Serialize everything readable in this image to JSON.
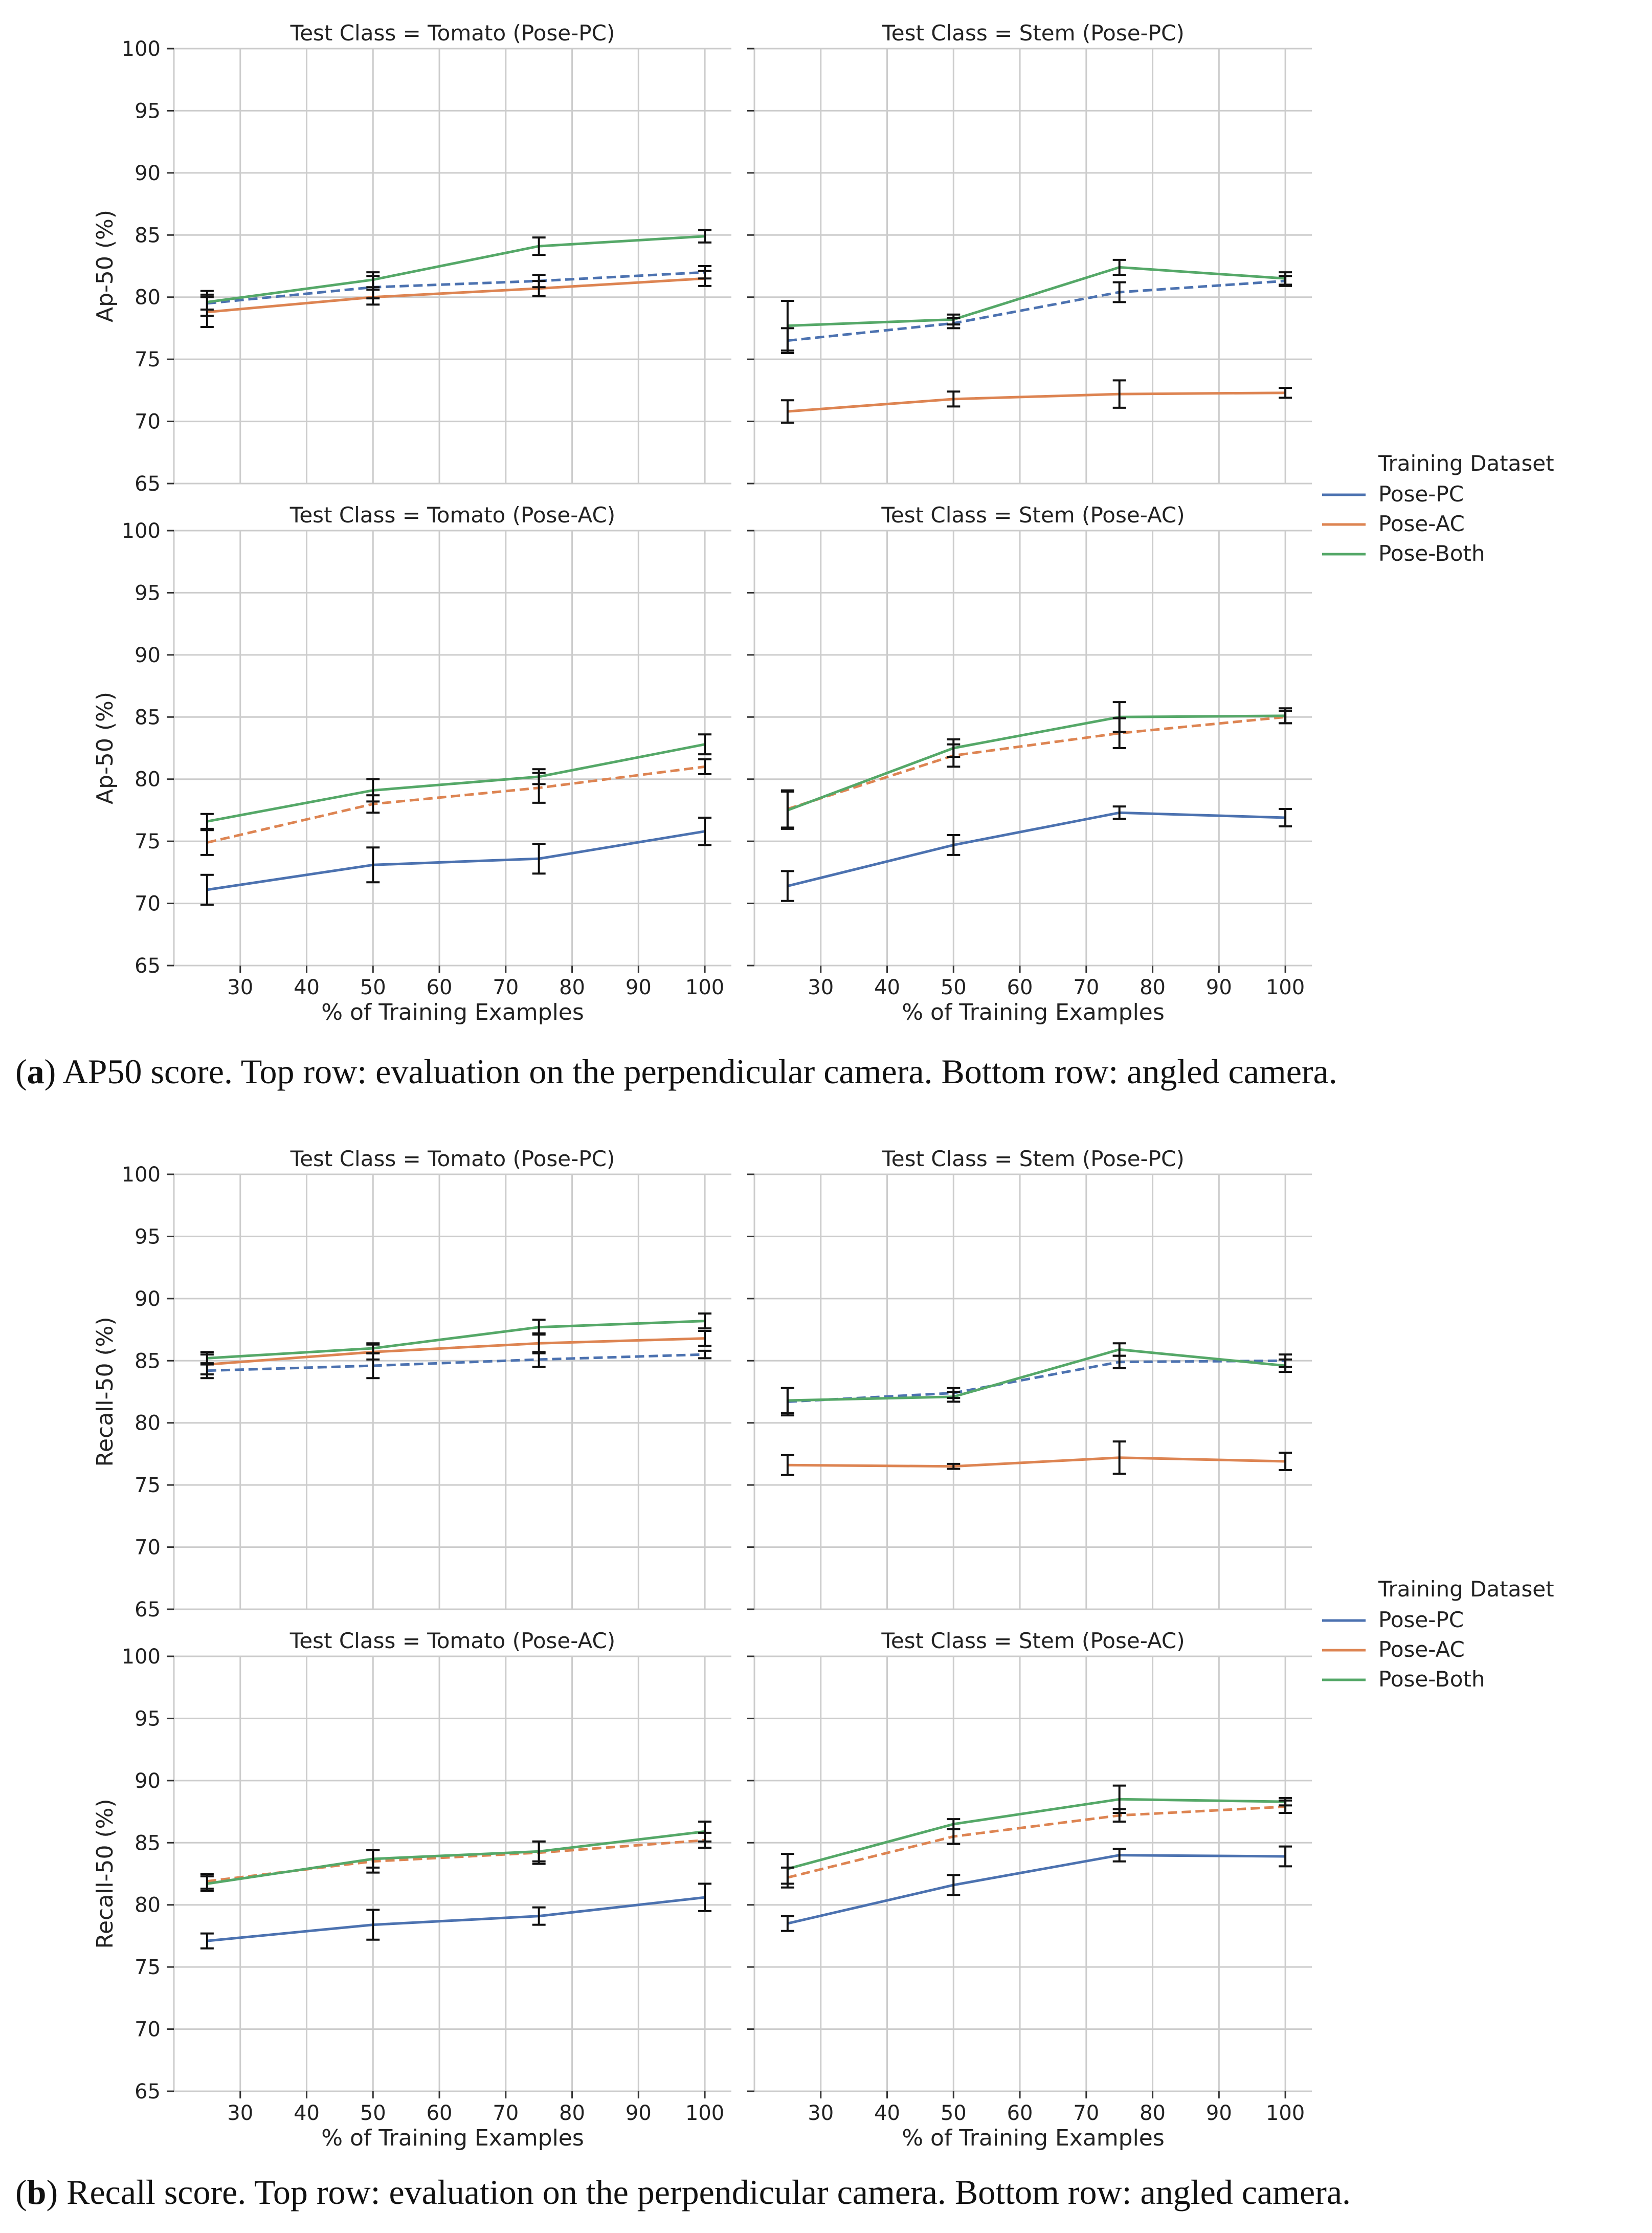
{
  "figure": {
    "xlabel": "% of Training Examples",
    "legend": {
      "title": "Training Dataset",
      "entries": [
        {
          "label": "Pose-PC",
          "color": "#4c72b0"
        },
        {
          "label": "Pose-AC",
          "color": "#dd8452"
        },
        {
          "label": "Pose-Both",
          "color": "#55a868"
        }
      ]
    },
    "captions": [
      {
        "letter": "a",
        "text": ") AP50 score. Top row: evaluation on the perpendicular camera. Bottom row: angled camera."
      },
      {
        "letter": "b",
        "text": ") Recall score. Top row: evaluation on the perpendicular camera. Bottom row: angled camera."
      }
    ]
  },
  "chart_data": [
    {
      "type": "line",
      "group": "a",
      "row": 0,
      "col": 0,
      "title": "Test Class = Tomato (Pose-PC)",
      "xlabel": "",
      "ylabel": "Ap-50 (%)",
      "xlim": [
        20,
        104
      ],
      "ylim": [
        65,
        100
      ],
      "xticks": [
        30,
        40,
        50,
        60,
        70,
        80,
        90,
        100
      ],
      "yticks": [
        65,
        70,
        75,
        80,
        85,
        90,
        95,
        100
      ],
      "grid": true,
      "x": [
        25,
        50,
        75,
        100
      ],
      "series": [
        {
          "name": "Pose-PC",
          "values": [
            79.5,
            80.8,
            81.3,
            82.0
          ],
          "err": [
            1.0,
            0.9,
            0.5,
            0.5
          ],
          "dashed": true
        },
        {
          "name": "Pose-AC",
          "values": [
            78.8,
            80.0,
            80.7,
            81.5
          ],
          "err": [
            1.2,
            0.6,
            0.6,
            0.6
          ],
          "dashed": false
        },
        {
          "name": "Pose-Both",
          "values": [
            79.6,
            81.4,
            84.1,
            84.9
          ],
          "err": [
            0.6,
            0.6,
            0.7,
            0.5
          ],
          "dashed": false
        }
      ]
    },
    {
      "type": "line",
      "group": "a",
      "row": 0,
      "col": 1,
      "title": "Test Class = Stem (Pose-PC)",
      "xlabel": "",
      "ylabel": "",
      "xlim": [
        20,
        104
      ],
      "ylim": [
        65,
        100
      ],
      "xticks": [
        30,
        40,
        50,
        60,
        70,
        80,
        90,
        100
      ],
      "yticks": [
        65,
        70,
        75,
        80,
        85,
        90,
        95,
        100
      ],
      "grid": true,
      "x": [
        25,
        50,
        75,
        100
      ],
      "series": [
        {
          "name": "Pose-PC",
          "values": [
            76.5,
            77.9,
            80.4,
            81.3
          ],
          "err": [
            1.0,
            0.4,
            0.8,
            0.4
          ],
          "dashed": true
        },
        {
          "name": "Pose-AC",
          "values": [
            70.8,
            71.8,
            72.2,
            72.3
          ],
          "err": [
            0.9,
            0.6,
            1.1,
            0.4
          ],
          "dashed": false
        },
        {
          "name": "Pose-Both",
          "values": [
            77.7,
            78.2,
            82.4,
            81.5
          ],
          "err": [
            2.0,
            0.4,
            0.6,
            0.5
          ],
          "dashed": false
        }
      ]
    },
    {
      "type": "line",
      "group": "a",
      "row": 1,
      "col": 0,
      "title": "Test Class = Tomato (Pose-AC)",
      "xlabel": "% of Training Examples",
      "ylabel": "Ap-50 (%)",
      "xlim": [
        20,
        104
      ],
      "ylim": [
        65,
        100
      ],
      "xticks": [
        30,
        40,
        50,
        60,
        70,
        80,
        90,
        100
      ],
      "yticks": [
        65,
        70,
        75,
        80,
        85,
        90,
        95,
        100
      ],
      "grid": true,
      "x": [
        25,
        50,
        75,
        100
      ],
      "series": [
        {
          "name": "Pose-PC",
          "values": [
            71.1,
            73.1,
            73.6,
            75.8
          ],
          "err": [
            1.2,
            1.4,
            1.2,
            1.1
          ],
          "dashed": false
        },
        {
          "name": "Pose-AC",
          "values": [
            74.9,
            78.0,
            79.3,
            81.0
          ],
          "err": [
            1.0,
            0.7,
            1.2,
            0.6
          ],
          "dashed": true
        },
        {
          "name": "Pose-Both",
          "values": [
            76.6,
            79.1,
            80.2,
            82.8
          ],
          "err": [
            0.6,
            0.9,
            0.6,
            0.8
          ],
          "dashed": false
        }
      ]
    },
    {
      "type": "line",
      "group": "a",
      "row": 1,
      "col": 1,
      "title": "Test Class = Stem (Pose-AC)",
      "xlabel": "% of Training Examples",
      "ylabel": "",
      "xlim": [
        20,
        104
      ],
      "ylim": [
        65,
        100
      ],
      "xticks": [
        30,
        40,
        50,
        60,
        70,
        80,
        90,
        100
      ],
      "yticks": [
        65,
        70,
        75,
        80,
        85,
        90,
        95,
        100
      ],
      "grid": true,
      "x": [
        25,
        50,
        75,
        100
      ],
      "series": [
        {
          "name": "Pose-PC",
          "values": [
            71.4,
            74.7,
            77.3,
            76.9
          ],
          "err": [
            1.2,
            0.8,
            0.5,
            0.7
          ],
          "dashed": false
        },
        {
          "name": "Pose-AC",
          "values": [
            77.6,
            81.9,
            83.7,
            85.0
          ],
          "err": [
            1.5,
            0.9,
            1.2,
            0.5
          ],
          "dashed": true
        },
        {
          "name": "Pose-Both",
          "values": [
            77.5,
            82.5,
            85.0,
            85.1
          ],
          "err": [
            1.5,
            0.7,
            1.2,
            0.6
          ],
          "dashed": false
        }
      ]
    },
    {
      "type": "line",
      "group": "b",
      "row": 0,
      "col": 0,
      "title": "Test Class = Tomato (Pose-PC)",
      "xlabel": "",
      "ylabel": "Recall-50 (%)",
      "xlim": [
        20,
        104
      ],
      "ylim": [
        65,
        100
      ],
      "xticks": [
        30,
        40,
        50,
        60,
        70,
        80,
        90,
        100
      ],
      "yticks": [
        65,
        70,
        75,
        80,
        85,
        90,
        95,
        100
      ],
      "grid": true,
      "x": [
        25,
        50,
        75,
        100
      ],
      "series": [
        {
          "name": "Pose-PC",
          "values": [
            84.2,
            84.6,
            85.1,
            85.5
          ],
          "err": [
            0.6,
            1.0,
            0.6,
            0.3
          ],
          "dashed": true
        },
        {
          "name": "Pose-AC",
          "values": [
            84.7,
            85.7,
            86.4,
            86.8
          ],
          "err": [
            0.8,
            0.6,
            0.8,
            0.6
          ],
          "dashed": false
        },
        {
          "name": "Pose-Both",
          "values": [
            85.2,
            86.0,
            87.7,
            88.2
          ],
          "err": [
            0.5,
            0.4,
            0.6,
            0.6
          ],
          "dashed": false
        }
      ]
    },
    {
      "type": "line",
      "group": "b",
      "row": 0,
      "col": 1,
      "title": "Test Class = Stem (Pose-PC)",
      "xlabel": "",
      "ylabel": "",
      "xlim": [
        20,
        104
      ],
      "ylim": [
        65,
        100
      ],
      "xticks": [
        30,
        40,
        50,
        60,
        70,
        80,
        90,
        100
      ],
      "yticks": [
        65,
        70,
        75,
        80,
        85,
        90,
        95,
        100
      ],
      "grid": true,
      "x": [
        25,
        50,
        75,
        100
      ],
      "series": [
        {
          "name": "Pose-PC",
          "values": [
            81.7,
            82.4,
            84.9,
            85.0
          ],
          "err": [
            1.1,
            0.4,
            0.5,
            0.5
          ],
          "dashed": true
        },
        {
          "name": "Pose-AC",
          "values": [
            76.6,
            76.5,
            77.2,
            76.9
          ],
          "err": [
            0.8,
            0.2,
            1.3,
            0.7
          ],
          "dashed": false
        },
        {
          "name": "Pose-Both",
          "values": [
            81.8,
            82.1,
            85.9,
            84.6
          ],
          "err": [
            1.0,
            0.4,
            0.5,
            0.5
          ],
          "dashed": false
        }
      ]
    },
    {
      "type": "line",
      "group": "b",
      "row": 1,
      "col": 0,
      "title": "Test Class = Tomato (Pose-AC)",
      "xlabel": "% of Training Examples",
      "ylabel": "Recall-50 (%)",
      "xlim": [
        20,
        104
      ],
      "ylim": [
        65,
        100
      ],
      "xticks": [
        30,
        40,
        50,
        60,
        70,
        80,
        90,
        100
      ],
      "yticks": [
        65,
        70,
        75,
        80,
        85,
        90,
        95,
        100
      ],
      "grid": true,
      "x": [
        25,
        50,
        75,
        100
      ],
      "series": [
        {
          "name": "Pose-PC",
          "values": [
            77.1,
            78.4,
            79.1,
            80.6
          ],
          "err": [
            0.6,
            1.2,
            0.7,
            1.1
          ],
          "dashed": false
        },
        {
          "name": "Pose-AC",
          "values": [
            81.9,
            83.5,
            84.2,
            85.2
          ],
          "err": [
            0.6,
            0.9,
            0.9,
            0.6
          ],
          "dashed": true
        },
        {
          "name": "Pose-Both",
          "values": [
            81.7,
            83.7,
            84.3,
            85.9
          ],
          "err": [
            0.6,
            0.7,
            0.8,
            0.8
          ],
          "dashed": false
        }
      ]
    },
    {
      "type": "line",
      "group": "b",
      "row": 1,
      "col": 1,
      "title": "Test Class = Stem (Pose-AC)",
      "xlabel": "% of Training Examples",
      "ylabel": "",
      "xlim": [
        20,
        104
      ],
      "ylim": [
        65,
        100
      ],
      "xticks": [
        30,
        40,
        50,
        60,
        70,
        80,
        90,
        100
      ],
      "yticks": [
        65,
        70,
        75,
        80,
        85,
        90,
        95,
        100
      ],
      "grid": true,
      "x": [
        25,
        50,
        75,
        100
      ],
      "series": [
        {
          "name": "Pose-PC",
          "values": [
            78.5,
            81.6,
            84.0,
            83.9
          ],
          "err": [
            0.6,
            0.8,
            0.5,
            0.8
          ],
          "dashed": false
        },
        {
          "name": "Pose-AC",
          "values": [
            82.2,
            85.5,
            87.2,
            87.9
          ],
          "err": [
            0.8,
            0.6,
            0.5,
            0.5
          ],
          "dashed": true
        },
        {
          "name": "Pose-Both",
          "values": [
            82.9,
            86.5,
            88.5,
            88.3
          ],
          "err": [
            1.2,
            0.4,
            1.1,
            0.3
          ],
          "dashed": false
        }
      ]
    }
  ]
}
